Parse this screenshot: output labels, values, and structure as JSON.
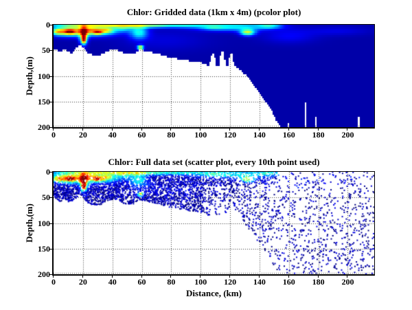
{
  "figure": {
    "background": "#ffffff"
  },
  "colors": {
    "axis": "#000000",
    "grid": "#333333",
    "deep_water_navy": "#00008f",
    "colormap": "jet"
  },
  "chart_data": [
    {
      "type": "heatmap",
      "title": "Chlor: Gridded data (1km x 4m) (pcolor plot)",
      "ylabel": "Depth,(m)",
      "xlim": [
        0,
        218
      ],
      "ylim": [
        0,
        200
      ],
      "y_inverted": true,
      "xticks": [
        0,
        20,
        40,
        60,
        80,
        100,
        120,
        140,
        160,
        180,
        200
      ],
      "yticks": [
        0,
        50,
        100,
        150,
        200
      ],
      "grid": "dotted",
      "legend": "none",
      "colormap": "jet",
      "cell_size_km_m": [
        1,
        4
      ],
      "base_value": 0.04,
      "field_blobs": [
        [
          21,
          12,
          20,
          10,
          0.55
        ],
        [
          26,
          10,
          6,
          6,
          0.18
        ],
        [
          25,
          1,
          30,
          4,
          0.35
        ],
        [
          9,
          13,
          9,
          8,
          0.3
        ],
        [
          3,
          14,
          4,
          6,
          0.25
        ],
        [
          11,
          14,
          3,
          4,
          0.35
        ],
        [
          20.5,
          20,
          2.5,
          16,
          0.6
        ],
        [
          20.5,
          30,
          2,
          7,
          0.5
        ],
        [
          30,
          15,
          3,
          4,
          0.38
        ],
        [
          36,
          11,
          5,
          6,
          0.3
        ],
        [
          47,
          8,
          6,
          6,
          0.18
        ],
        [
          52,
          2,
          16,
          5,
          0.35
        ],
        [
          58,
          15,
          6,
          13,
          0.32
        ],
        [
          59,
          44,
          2,
          4,
          0.6
        ],
        [
          70,
          2,
          10,
          4,
          0.2
        ],
        [
          88,
          2,
          16,
          4,
          0.3
        ],
        [
          108,
          5,
          8,
          5,
          0.15
        ],
        [
          123,
          4,
          24,
          8,
          0.33
        ],
        [
          132,
          15,
          5,
          6,
          0.5
        ],
        [
          147,
          3,
          8,
          4,
          0.28
        ],
        [
          160,
          22,
          18,
          14,
          0.08
        ],
        [
          193,
          12,
          22,
          9,
          0.06
        ],
        [
          75,
          30,
          30,
          20,
          0.05
        ]
      ],
      "bathymetry_km_m": [
        [
          0,
          46
        ],
        [
          4,
          52
        ],
        [
          8,
          48
        ],
        [
          12,
          56
        ],
        [
          16,
          44
        ],
        [
          18,
          37
        ],
        [
          20,
          44
        ],
        [
          24,
          56
        ],
        [
          28,
          60
        ],
        [
          32,
          58
        ],
        [
          35,
          54
        ],
        [
          38,
          50
        ],
        [
          41,
          47
        ],
        [
          44,
          50
        ],
        [
          48,
          56
        ],
        [
          52,
          58
        ],
        [
          55,
          56
        ],
        [
          57,
          52
        ],
        [
          59,
          48
        ],
        [
          61,
          50
        ],
        [
          64,
          53
        ],
        [
          67,
          54
        ],
        [
          70,
          56
        ],
        [
          73,
          58
        ],
        [
          76,
          61
        ],
        [
          80,
          64
        ],
        [
          84,
          66
        ],
        [
          88,
          68
        ],
        [
          92,
          70
        ],
        [
          96,
          71
        ],
        [
          100,
          73
        ],
        [
          103,
          76
        ],
        [
          106,
          80
        ],
        [
          107.5,
          58
        ],
        [
          109,
          56
        ],
        [
          110.5,
          79
        ],
        [
          112.5,
          80
        ],
        [
          114,
          52
        ],
        [
          115.5,
          53
        ],
        [
          117,
          78
        ],
        [
          118.5,
          80
        ],
        [
          120,
          55
        ],
        [
          121.5,
          56
        ],
        [
          123,
          80
        ],
        [
          125,
          84
        ],
        [
          128,
          89
        ],
        [
          131,
          99
        ],
        [
          134,
          112
        ],
        [
          137,
          122
        ],
        [
          140,
          133
        ],
        [
          143,
          145
        ],
        [
          145,
          153
        ],
        [
          147,
          162
        ],
        [
          149,
          172
        ],
        [
          151,
          184
        ],
        [
          153,
          196
        ],
        [
          154.5,
          200
        ],
        [
          218,
          200
        ]
      ],
      "nodata_columns_km_width_depth": [
        [
          159.5,
          0.8,
          193
        ],
        [
          171.5,
          1.0,
          150
        ],
        [
          178.5,
          1.0,
          179
        ],
        [
          207.5,
          1.0,
          178
        ]
      ]
    },
    {
      "type": "scatter",
      "title": "Chlor: Full data set (scatter plot, every 10th point used)",
      "xlabel": "Distance, (km)",
      "ylabel": "Depth,(m)",
      "xlim": [
        0,
        218
      ],
      "ylim": [
        0,
        200
      ],
      "y_inverted": true,
      "xticks": [
        0,
        20,
        40,
        60,
        80,
        100,
        120,
        140,
        160,
        180,
        200
      ],
      "yticks": [
        0,
        50,
        100,
        150,
        200
      ],
      "grid": "dotted",
      "legend": "none",
      "colormap": "jet",
      "marker_px": 2,
      "sampling": {
        "seed": 987654,
        "n_base": 2400,
        "n_shelf": 1600,
        "shelf_xmax": 102,
        "n_surface": 900,
        "surface_xmax": 152,
        "surface_max_depth": 26,
        "n_bloom": 300,
        "bloom_xmax": 48,
        "bloom_max_depth": 50,
        "floor_overshoot_m": 6,
        "color_noise": 0.15
      }
    }
  ]
}
